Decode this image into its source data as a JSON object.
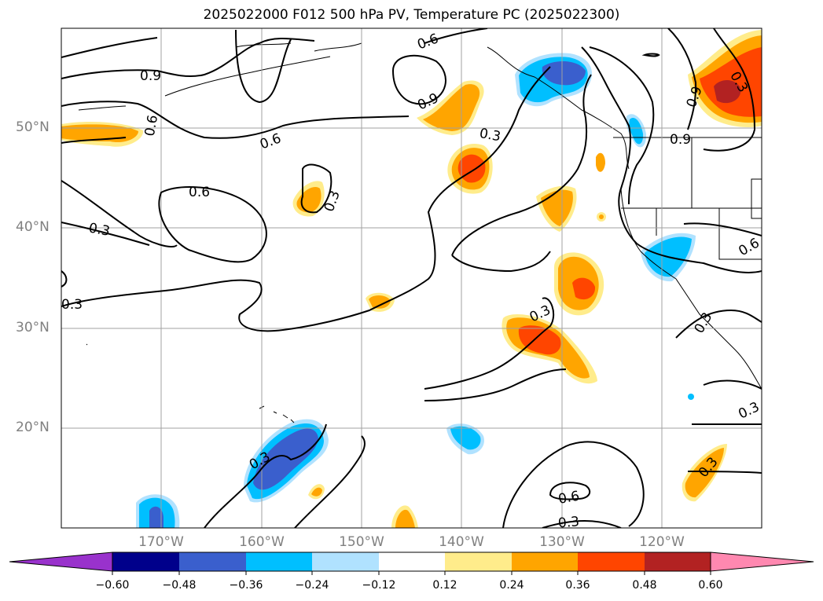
{
  "title": "2025022000 F012 500 hPa PV, Temperature PC (2025022300)",
  "lat_labels": [
    "50°N",
    "40°N",
    "30°N",
    "20°N"
  ],
  "lon_labels": [
    "170°W",
    "160°W",
    "150°W",
    "140°W",
    "130°W",
    "120°W"
  ],
  "colorbar": {
    "ticks": [
      "−0.60",
      "−0.48",
      "−0.36",
      "−0.24",
      "−0.12",
      "0.12",
      "0.24",
      "0.36",
      "0.48",
      "0.60"
    ],
    "colors": [
      "#9932cc",
      "#00008b",
      "#3a5fcd",
      "#00bfff",
      "#b0e2ff",
      "#ffffff",
      "#ffec8b",
      "#ffa500",
      "#ff4500",
      "#b22222",
      "#ff88b0"
    ]
  },
  "contour_labels": [
    "0.9",
    "0.6",
    "0.3"
  ],
  "palette": {
    "neg_light": "#b0e2ff",
    "neg_med": "#00bfff",
    "neg_dark": "#3a5fcd",
    "pos_light": "#ffec8b",
    "pos_med": "#ffa500",
    "pos_dark": "#ff4500",
    "pos_max": "#b22222"
  }
}
